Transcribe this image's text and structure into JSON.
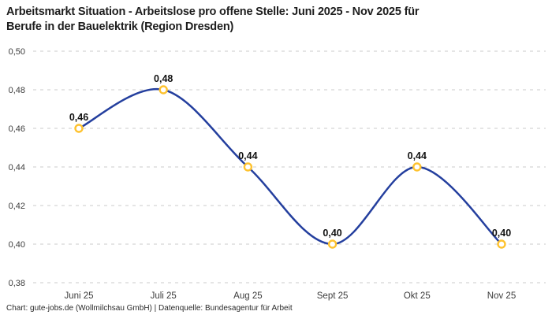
{
  "header": {
    "title": "Arbeitsmarkt Situation - Arbeitslose pro offene Stelle: Juni 2025 - Nov 2025 für\nBerufe in der Bauelektrik (Region Dresden)"
  },
  "footer": {
    "text": "Chart: gute-jobs.de (Wollmilchsau GmbH) | Datenquelle: Bundesagentur für Arbeit"
  },
  "chart_data": {
    "type": "line",
    "title": "Arbeitsmarkt Situation - Arbeitslose pro offene Stelle: Juni 2025 - Nov 2025 für Berufe in der Bauelektrik (Region Dresden)",
    "categories": [
      "Juni 25",
      "Juli 25",
      "Aug 25",
      "Sept 25",
      "Okt 25",
      "Nov 25"
    ],
    "values": [
      0.46,
      0.48,
      0.44,
      0.4,
      0.44,
      0.4
    ],
    "point_labels": [
      "0,46",
      "0,48",
      "0,44",
      "0,40",
      "0,44",
      "0,40"
    ],
    "y_ticks": [
      0.5,
      0.48,
      0.46,
      0.44,
      0.42,
      0.4,
      0.38
    ],
    "y_tick_labels": [
      "0,50",
      "0,48",
      "0,46",
      "0,44",
      "0,42",
      "0,40",
      "0,38"
    ],
    "ylim": [
      0.38,
      0.5
    ],
    "xlabel": "",
    "ylabel": "",
    "grid": "horizontal-dashed",
    "legend": "none",
    "curve": "smooth-spline",
    "colors": {
      "line": "#243F9E",
      "marker_stroke": "#FEC22E",
      "marker_fill": "#FFFFFF",
      "gridline": "#CBCBCB",
      "point_label": "#111111",
      "tick_label": "#3C3C3C",
      "title": "#1D1D1D"
    }
  }
}
